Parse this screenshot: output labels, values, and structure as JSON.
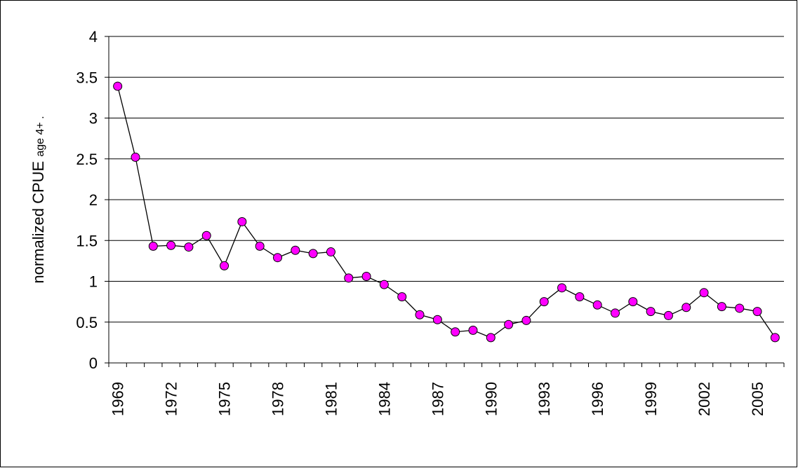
{
  "chart_data": {
    "type": "line",
    "ylabel": "normalized CPUE",
    "ylabel_suffix": "age 4+ .",
    "categories": [
      "1969",
      null,
      null,
      "1972",
      null,
      null,
      "1975",
      null,
      null,
      "1978",
      null,
      null,
      "1981",
      null,
      null,
      "1984",
      null,
      null,
      "1987",
      null,
      null,
      "1990",
      null,
      null,
      "1993",
      null,
      null,
      "1996",
      null,
      null,
      "1999",
      null,
      null,
      "2002",
      null,
      null,
      "2005",
      null
    ],
    "series": [
      {
        "color": "#ff00ff",
        "values": [
          3.39,
          2.52,
          1.43,
          1.44,
          1.42,
          1.56,
          1.19,
          1.73,
          1.43,
          1.29,
          1.38,
          1.34,
          1.36,
          1.04,
          1.06,
          0.96,
          0.81,
          0.59,
          0.53,
          0.38,
          0.4,
          0.31,
          0.47,
          0.52,
          0.75,
          0.92,
          0.81,
          0.71,
          0.61,
          0.75,
          0.63,
          0.58,
          0.68,
          0.86,
          0.69,
          0.67,
          0.63,
          0.31
        ]
      }
    ],
    "ylim": [
      0,
      4
    ],
    "yticks": [
      0,
      0.5,
      1,
      1.5,
      2,
      2.5,
      3,
      3.5,
      4
    ],
    "grid": true
  }
}
